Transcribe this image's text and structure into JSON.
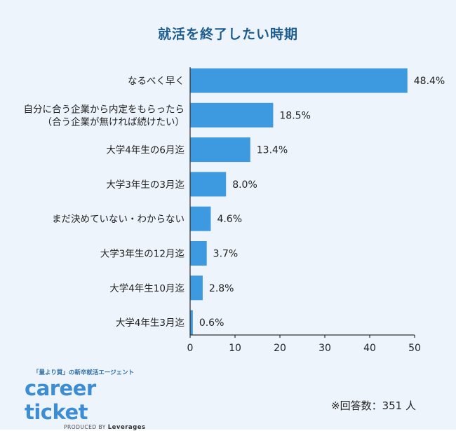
{
  "chart_data": {
    "type": "bar",
    "orientation": "horizontal",
    "title": "就活を終了したい時期",
    "categories": [
      [
        "なるべく早く"
      ],
      [
        "自分に合う企業から内定をもらったら",
        "（合う企業が無ければ続けたい）"
      ],
      [
        "大学4年生の6月迄"
      ],
      [
        "大学3年生の3月迄"
      ],
      [
        "まだ決めていない・わからない"
      ],
      [
        "大学3年生の12月迄"
      ],
      [
        "大学4年生10月迄"
      ],
      [
        "大学4年生3月迄"
      ]
    ],
    "values": [
      48.4,
      18.5,
      13.4,
      8.0,
      4.6,
      3.7,
      2.8,
      0.6
    ],
    "value_labels": [
      "48.4%",
      "18.5%",
      "13.4%",
      "8.0%",
      "4.6%",
      "3.7%",
      "2.8%",
      "0.6%"
    ],
    "xlim": [
      0,
      50
    ],
    "x_ticks": [
      0,
      10,
      20,
      30,
      40,
      50
    ],
    "bar_color": "#3d9ae0",
    "grid": false
  },
  "note": "※回答数：351 人",
  "logo": {
    "tagline": "「量より質」の新卒就活エージェント",
    "wordmark": "career ticket",
    "byline_prefix": "PRODUCED BY",
    "byline_brand": "Leverages"
  }
}
